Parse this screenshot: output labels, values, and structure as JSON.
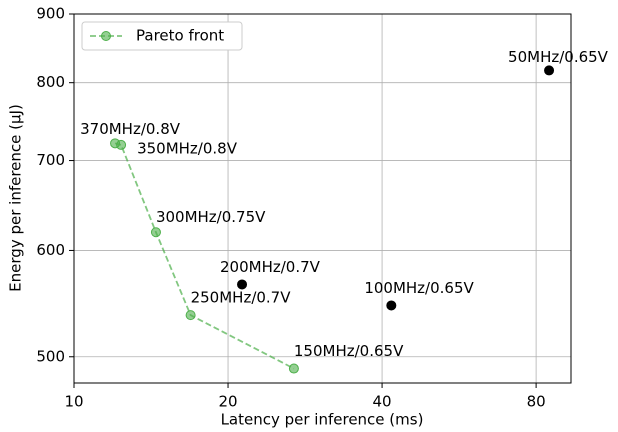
{
  "chart_data": {
    "type": "scatter",
    "xlabel": "Latency per inference (ms)",
    "ylabel": "Energy per inference (μJ)",
    "xscale": "log",
    "yscale": "log",
    "grid": true,
    "legend": "upper left",
    "xlim": [
      10,
      93.6
    ],
    "ylim": [
      478,
      900
    ],
    "xticks": [
      10,
      20,
      40,
      80
    ],
    "yticks": [
      500,
      600,
      700,
      800,
      900
    ],
    "series": [
      {
        "name": "Pareto front",
        "color": "#4daf4a",
        "line": "dashed",
        "x": [
          12.03,
          12.36,
          14.46,
          16.9,
          26.9
        ],
        "values": [
          721,
          719,
          619,
          537,
          490
        ],
        "labels": [
          "370MHz/0.8V",
          "350MHz/0.8V",
          "300MHz/0.75V",
          "250MHz/0.7V",
          "150MHz/0.65V"
        ]
      },
      {
        "color": "#000000",
        "x": [
          21.3,
          41.7,
          84.8
        ],
        "values": [
          566,
          546,
          817
        ],
        "labels": [
          "200MHz/0.7V",
          "100MHz/0.65V",
          "50MHz/0.65V"
        ]
      }
    ]
  }
}
